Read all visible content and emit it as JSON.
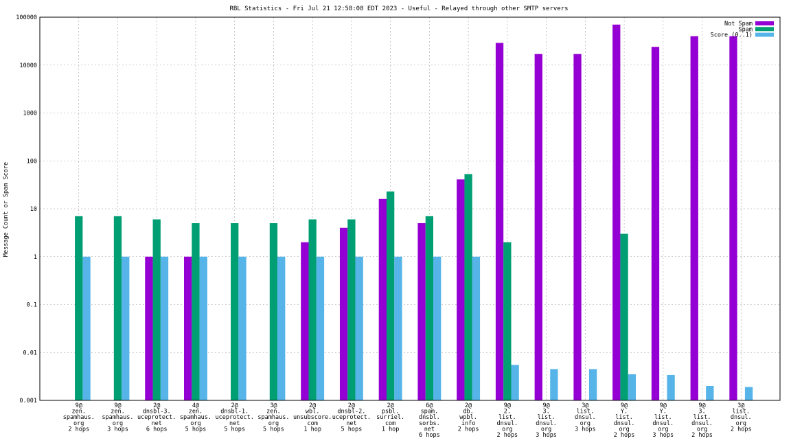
{
  "chart_data": {
    "type": "bar",
    "title": "RBL Statistics - Fri Jul 21 12:58:08 EDT 2023 - Useful - Relayed through other SMTP servers",
    "xlabel": "",
    "ylabel": "Message Count or Spam Score",
    "yscale": "log",
    "ylim": [
      0.001,
      100000
    ],
    "ytick_labels": [
      "0.001",
      "0.01",
      "0.1",
      "1",
      "10",
      "100",
      "1000",
      "10000",
      "100000"
    ],
    "grid": true,
    "legend_position": "top-right",
    "categories": [
      [
        "9@",
        "zen.",
        "spamhaus.",
        "org",
        "2 hops"
      ],
      [
        "9@",
        "zen.",
        "spamhaus.",
        "org",
        "3 hops"
      ],
      [
        "2@",
        "dnsbl-3.",
        "uceprotect.",
        "net",
        "6 hops"
      ],
      [
        "4@",
        "zen.",
        "spamhaus.",
        "org",
        "5 hops"
      ],
      [
        "2@",
        "dnsbl-1.",
        "uceprotect.",
        "net",
        "5 hops"
      ],
      [
        "3@",
        "zen.",
        "spamhaus.",
        "org",
        "5 hops"
      ],
      [
        "2@",
        "wbl.",
        "unsubscore.",
        "com",
        "1 hop"
      ],
      [
        "2@",
        "dnsbl-2.",
        "uceprotect.",
        "net",
        "5 hops"
      ],
      [
        "2@",
        "psbl.",
        "surriel.",
        "com",
        "1 hop"
      ],
      [
        "6@",
        "spam.",
        "dnsbl.",
        "sorbs.",
        "net",
        "6 hops"
      ],
      [
        "2@",
        "db.",
        "wpbl.",
        "info",
        "2 hops"
      ],
      [
        "9@",
        "2.",
        "list.",
        "dnsul.",
        "org",
        "2 hops"
      ],
      [
        "9@",
        "3.",
        "list.",
        "dnsul.",
        "org",
        "3 hops"
      ],
      [
        "3@",
        "list.",
        "dnsul.",
        "org",
        "3 hops"
      ],
      [
        "9@",
        "Y.",
        "list.",
        "dnsul.",
        "org",
        "2 hops"
      ],
      [
        "9@",
        "Y.",
        "list.",
        "dnsul.",
        "org",
        "3 hops"
      ],
      [
        "9@",
        "3.",
        "list.",
        "dnsul.",
        "org",
        "2 hops"
      ],
      [
        "3@",
        "list.",
        "dnsul.",
        "org",
        "2 hops"
      ]
    ],
    "series": [
      {
        "name": "Not Spam",
        "color": "#9400d3",
        "values": [
          null,
          null,
          1,
          1,
          null,
          null,
          2,
          4,
          16,
          5,
          41,
          29000,
          17000,
          17000,
          70000,
          24000,
          40000,
          40000
        ]
      },
      {
        "name": "Spam",
        "color": "#009e73",
        "values": [
          7,
          7,
          6,
          5,
          5,
          5,
          6,
          6,
          23,
          7,
          53,
          2,
          null,
          null,
          3,
          null,
          null,
          null
        ]
      },
      {
        "name": "Score (0..1)",
        "color": "#56b4e9",
        "values": [
          1,
          1,
          1,
          1,
          1,
          1,
          1,
          1,
          1,
          1,
          1,
          0.0055,
          0.0045,
          0.0045,
          0.0035,
          0.0034,
          0.002,
          0.0019
        ]
      }
    ]
  }
}
